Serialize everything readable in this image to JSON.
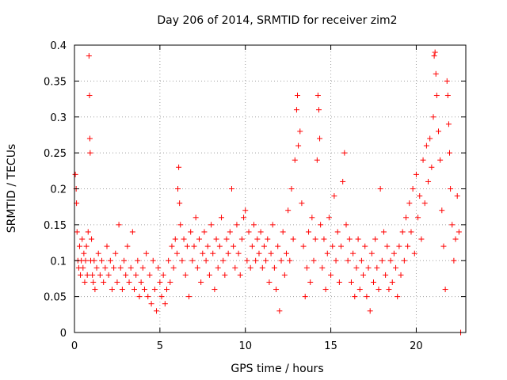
{
  "chart_data": {
    "type": "scatter",
    "title": "Day 206 of 2014, SRMTID for receiver zim2",
    "xlabel": "GPS time / hours",
    "ylabel": "SRMTID / TECUs",
    "xlim": [
      0,
      22.9
    ],
    "ylim": [
      0,
      0.4
    ],
    "x_ticks": [
      0,
      5,
      10,
      15,
      20
    ],
    "x_tick_labels": [
      "0",
      "5",
      "10",
      "15",
      "20"
    ],
    "y_ticks": [
      0,
      0.05,
      0.1,
      0.15,
      0.2,
      0.25,
      0.3,
      0.35,
      0.4
    ],
    "y_tick_labels": [
      "0",
      "0.05",
      "0.1",
      "0.15",
      "0.2",
      "0.25",
      "0.3",
      "0.35",
      "0.4"
    ],
    "grid": true,
    "marker": "plus",
    "color": "#ff0000",
    "series": [
      {
        "name": "SRMTID",
        "points": [
          [
            0.05,
            0.22
          ],
          [
            0.1,
            0.2
          ],
          [
            0.12,
            0.18
          ],
          [
            0.15,
            0.14
          ],
          [
            0.2,
            0.1
          ],
          [
            0.25,
            0.09
          ],
          [
            0.3,
            0.12
          ],
          [
            0.35,
            0.08
          ],
          [
            0.4,
            0.1
          ],
          [
            0.45,
            0.13
          ],
          [
            0.5,
            0.09
          ],
          [
            0.55,
            0.11
          ],
          [
            0.6,
            0.07
          ],
          [
            0.65,
            0.1
          ],
          [
            0.7,
            0.12
          ],
          [
            0.75,
            0.08
          ],
          [
            0.8,
            0.14
          ],
          [
            0.85,
            0.385
          ],
          [
            0.88,
            0.33
          ],
          [
            0.9,
            0.27
          ],
          [
            0.92,
            0.25
          ],
          [
            0.95,
            0.1
          ],
          [
            1.0,
            0.13
          ],
          [
            1.05,
            0.08
          ],
          [
            1.1,
            0.07
          ],
          [
            1.15,
            0.1
          ],
          [
            1.2,
            0.06
          ],
          [
            1.3,
            0.09
          ],
          [
            1.4,
            0.11
          ],
          [
            1.5,
            0.08
          ],
          [
            1.6,
            0.1
          ],
          [
            1.7,
            0.07
          ],
          [
            1.8,
            0.09
          ],
          [
            1.9,
            0.12
          ],
          [
            2.0,
            0.08
          ],
          [
            2.1,
            0.1
          ],
          [
            2.2,
            0.06
          ],
          [
            2.3,
            0.09
          ],
          [
            2.4,
            0.11
          ],
          [
            2.5,
            0.07
          ],
          [
            2.6,
            0.15
          ],
          [
            2.7,
            0.09
          ],
          [
            2.8,
            0.06
          ],
          [
            2.9,
            0.1
          ],
          [
            3.0,
            0.08
          ],
          [
            3.1,
            0.12
          ],
          [
            3.2,
            0.07
          ],
          [
            3.3,
            0.09
          ],
          [
            3.4,
            0.14
          ],
          [
            3.5,
            0.06
          ],
          [
            3.6,
            0.08
          ],
          [
            3.7,
            0.1
          ],
          [
            3.8,
            0.05
          ],
          [
            3.9,
            0.07
          ],
          [
            4.0,
            0.09
          ],
          [
            4.1,
            0.06
          ],
          [
            4.2,
            0.11
          ],
          [
            4.3,
            0.05
          ],
          [
            4.4,
            0.08
          ],
          [
            4.5,
            0.04
          ],
          [
            4.6,
            0.1
          ],
          [
            4.7,
            0.06
          ],
          [
            4.8,
            0.03
          ],
          [
            4.9,
            0.09
          ],
          [
            5.0,
            0.07
          ],
          [
            5.1,
            0.05
          ],
          [
            5.2,
            0.08
          ],
          [
            5.3,
            0.04
          ],
          [
            5.4,
            0.06
          ],
          [
            5.5,
            0.1
          ],
          [
            5.6,
            0.07
          ],
          [
            5.7,
            0.12
          ],
          [
            5.8,
            0.09
          ],
          [
            5.9,
            0.13
          ],
          [
            6.0,
            0.11
          ],
          [
            6.05,
            0.2
          ],
          [
            6.1,
            0.23
          ],
          [
            6.15,
            0.18
          ],
          [
            6.2,
            0.15
          ],
          [
            6.3,
            0.1
          ],
          [
            6.4,
            0.13
          ],
          [
            6.5,
            0.08
          ],
          [
            6.6,
            0.12
          ],
          [
            6.7,
            0.05
          ],
          [
            6.8,
            0.14
          ],
          [
            6.9,
            0.1
          ],
          [
            7.0,
            0.12
          ],
          [
            7.1,
            0.16
          ],
          [
            7.2,
            0.09
          ],
          [
            7.3,
            0.13
          ],
          [
            7.4,
            0.07
          ],
          [
            7.5,
            0.11
          ],
          [
            7.6,
            0.14
          ],
          [
            7.7,
            0.1
          ],
          [
            7.8,
            0.12
          ],
          [
            7.9,
            0.08
          ],
          [
            8.0,
            0.15
          ],
          [
            8.1,
            0.11
          ],
          [
            8.2,
            0.06
          ],
          [
            8.3,
            0.13
          ],
          [
            8.4,
            0.09
          ],
          [
            8.5,
            0.12
          ],
          [
            8.6,
            0.16
          ],
          [
            8.7,
            0.1
          ],
          [
            8.8,
            0.08
          ],
          [
            8.9,
            0.13
          ],
          [
            9.0,
            0.11
          ],
          [
            9.1,
            0.14
          ],
          [
            9.2,
            0.2
          ],
          [
            9.3,
            0.12
          ],
          [
            9.4,
            0.09
          ],
          [
            9.5,
            0.15
          ],
          [
            9.6,
            0.11
          ],
          [
            9.7,
            0.08
          ],
          [
            9.8,
            0.13
          ],
          [
            9.9,
            0.16
          ],
          [
            10.0,
            0.17
          ],
          [
            10.1,
            0.1
          ],
          [
            10.2,
            0.14
          ],
          [
            10.3,
            0.09
          ],
          [
            10.4,
            0.12
          ],
          [
            10.5,
            0.15
          ],
          [
            10.6,
            0.1
          ],
          [
            10.7,
            0.13
          ],
          [
            10.8,
            0.11
          ],
          [
            10.9,
            0.14
          ],
          [
            11.0,
            0.09
          ],
          [
            11.1,
            0.12
          ],
          [
            11.2,
            0.1
          ],
          [
            11.3,
            0.13
          ],
          [
            11.4,
            0.07
          ],
          [
            11.5,
            0.11
          ],
          [
            11.6,
            0.15
          ],
          [
            11.7,
            0.09
          ],
          [
            11.8,
            0.06
          ],
          [
            11.9,
            0.12
          ],
          [
            12.0,
            0.03
          ],
          [
            12.1,
            0.1
          ],
          [
            12.2,
            0.14
          ],
          [
            12.3,
            0.08
          ],
          [
            12.4,
            0.11
          ],
          [
            12.5,
            0.17
          ],
          [
            12.6,
            0.1
          ],
          [
            12.7,
            0.2
          ],
          [
            12.8,
            0.13
          ],
          [
            12.9,
            0.24
          ],
          [
            13.0,
            0.31
          ],
          [
            13.05,
            0.33
          ],
          [
            13.1,
            0.26
          ],
          [
            13.2,
            0.28
          ],
          [
            13.3,
            0.18
          ],
          [
            13.4,
            0.12
          ],
          [
            13.5,
            0.05
          ],
          [
            13.6,
            0.09
          ],
          [
            13.7,
            0.14
          ],
          [
            13.8,
            0.07
          ],
          [
            13.9,
            0.16
          ],
          [
            14.0,
            0.1
          ],
          [
            14.1,
            0.13
          ],
          [
            14.2,
            0.24
          ],
          [
            14.25,
            0.33
          ],
          [
            14.3,
            0.31
          ],
          [
            14.35,
            0.27
          ],
          [
            14.4,
            0.15
          ],
          [
            14.5,
            0.09
          ],
          [
            14.6,
            0.13
          ],
          [
            14.7,
            0.06
          ],
          [
            14.8,
            0.11
          ],
          [
            14.9,
            0.16
          ],
          [
            15.0,
            0.08
          ],
          [
            15.1,
            0.12
          ],
          [
            15.2,
            0.19
          ],
          [
            15.3,
            0.1
          ],
          [
            15.4,
            0.14
          ],
          [
            15.5,
            0.07
          ],
          [
            15.6,
            0.12
          ],
          [
            15.7,
            0.21
          ],
          [
            15.8,
            0.25
          ],
          [
            15.9,
            0.15
          ],
          [
            16.0,
            0.1
          ],
          [
            16.1,
            0.13
          ],
          [
            16.2,
            0.07
          ],
          [
            16.3,
            0.11
          ],
          [
            16.4,
            0.05
          ],
          [
            16.5,
            0.09
          ],
          [
            16.6,
            0.13
          ],
          [
            16.7,
            0.06
          ],
          [
            16.8,
            0.1
          ],
          [
            16.9,
            0.08
          ],
          [
            17.0,
            0.12
          ],
          [
            17.1,
            0.05
          ],
          [
            17.2,
            0.09
          ],
          [
            17.3,
            0.03
          ],
          [
            17.4,
            0.11
          ],
          [
            17.5,
            0.07
          ],
          [
            17.6,
            0.13
          ],
          [
            17.7,
            0.09
          ],
          [
            17.8,
            0.06
          ],
          [
            17.9,
            0.2
          ],
          [
            18.0,
            0.1
          ],
          [
            18.1,
            0.14
          ],
          [
            18.2,
            0.08
          ],
          [
            18.3,
            0.12
          ],
          [
            18.4,
            0.06
          ],
          [
            18.5,
            0.1
          ],
          [
            18.6,
            0.07
          ],
          [
            18.7,
            0.11
          ],
          [
            18.8,
            0.09
          ],
          [
            18.9,
            0.05
          ],
          [
            19.0,
            0.12
          ],
          [
            19.1,
            0.08
          ],
          [
            19.2,
            0.14
          ],
          [
            19.3,
            0.1
          ],
          [
            19.4,
            0.16
          ],
          [
            19.5,
            0.12
          ],
          [
            19.6,
            0.18
          ],
          [
            19.7,
            0.14
          ],
          [
            19.8,
            0.2
          ],
          [
            19.9,
            0.11
          ],
          [
            20.0,
            0.22
          ],
          [
            20.1,
            0.16
          ],
          [
            20.2,
            0.19
          ],
          [
            20.3,
            0.13
          ],
          [
            20.4,
            0.24
          ],
          [
            20.5,
            0.18
          ],
          [
            20.6,
            0.26
          ],
          [
            20.7,
            0.21
          ],
          [
            20.8,
            0.27
          ],
          [
            20.9,
            0.23
          ],
          [
            21.0,
            0.3
          ],
          [
            21.05,
            0.385
          ],
          [
            21.1,
            0.39
          ],
          [
            21.15,
            0.36
          ],
          [
            21.2,
            0.33
          ],
          [
            21.3,
            0.28
          ],
          [
            21.4,
            0.24
          ],
          [
            21.5,
            0.17
          ],
          [
            21.6,
            0.12
          ],
          [
            21.7,
            0.06
          ],
          [
            21.8,
            0.35
          ],
          [
            21.85,
            0.33
          ],
          [
            21.9,
            0.29
          ],
          [
            21.95,
            0.25
          ],
          [
            22.0,
            0.2
          ],
          [
            22.1,
            0.15
          ],
          [
            22.2,
            0.1
          ],
          [
            22.3,
            0.13
          ],
          [
            22.4,
            0.19
          ],
          [
            22.5,
            0.14
          ],
          [
            22.6,
            0.0
          ]
        ]
      }
    ]
  }
}
